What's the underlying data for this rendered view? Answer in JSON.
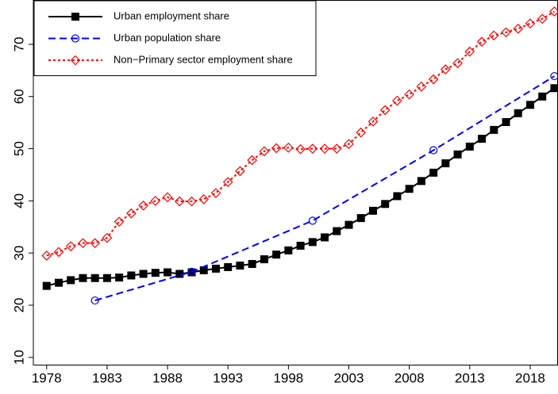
{
  "chart_data": {
    "type": "line",
    "xlim": [
      1976.9,
      2020.3
    ],
    "ylim": [
      8.6,
      78.5
    ],
    "xticks": [
      1978,
      1983,
      1988,
      1993,
      1998,
      2003,
      2008,
      2013,
      2018
    ],
    "yticks": [
      10,
      20,
      30,
      40,
      50,
      60,
      70
    ],
    "legend": "upper left",
    "series": [
      {
        "name": "Urban employment share",
        "color": "#000000",
        "linestyle": "solid",
        "marker": "square",
        "x": [
          1978,
          1979,
          1980,
          1981,
          1982,
          1983,
          1984,
          1985,
          1986,
          1987,
          1988,
          1989,
          1990,
          1991,
          1992,
          1993,
          1994,
          1995,
          1996,
          1997,
          1998,
          1999,
          2000,
          2001,
          2002,
          2003,
          2004,
          2005,
          2006,
          2007,
          2008,
          2009,
          2010,
          2011,
          2012,
          2013,
          2014,
          2015,
          2016,
          2017,
          2018,
          2019,
          2020
        ],
        "values": [
          23.7,
          24.3,
          24.8,
          25.2,
          25.2,
          25.2,
          25.3,
          25.7,
          26.0,
          26.2,
          26.3,
          26.0,
          26.3,
          26.7,
          27.0,
          27.3,
          27.6,
          27.9,
          28.8,
          29.7,
          30.5,
          31.4,
          32.1,
          33.0,
          34.2,
          35.4,
          36.7,
          38.1,
          39.4,
          40.9,
          42.3,
          43.8,
          45.4,
          47.2,
          48.9,
          50.4,
          51.9,
          53.6,
          55.1,
          56.8,
          58.4,
          60.0,
          61.6
        ]
      },
      {
        "name": "Urban population share",
        "color": "#0000ff",
        "linestyle": "dashed",
        "marker": "circle",
        "x": [
          1982,
          1990,
          2000,
          2010,
          2020
        ],
        "values": [
          20.9,
          26.4,
          36.2,
          49.7,
          63.9
        ]
      },
      {
        "name": "Non−Primary sector employment share",
        "color": "#ff0000",
        "linestyle": "dotted",
        "marker": "diamond",
        "x": [
          1978,
          1979,
          1980,
          1981,
          1982,
          1983,
          1984,
          1985,
          1986,
          1987,
          1988,
          1989,
          1990,
          1991,
          1992,
          1993,
          1994,
          1995,
          1996,
          1997,
          1998,
          1999,
          2000,
          2001,
          2002,
          2003,
          2004,
          2005,
          2006,
          2007,
          2008,
          2009,
          2010,
          2011,
          2012,
          2013,
          2014,
          2015,
          2016,
          2017,
          2018,
          2019,
          2020
        ],
        "values": [
          29.5,
          30.2,
          31.3,
          31.9,
          31.9,
          32.9,
          36.0,
          37.6,
          39.1,
          40.0,
          40.7,
          39.9,
          39.9,
          40.3,
          41.5,
          43.6,
          45.7,
          47.8,
          49.5,
          50.1,
          50.2,
          49.9,
          50.0,
          50.0,
          50.0,
          50.9,
          53.1,
          55.2,
          57.4,
          59.2,
          60.4,
          61.9,
          63.3,
          65.2,
          66.4,
          68.6,
          70.5,
          71.7,
          72.3,
          73.0,
          74.0,
          74.9,
          76.3
        ]
      }
    ]
  }
}
